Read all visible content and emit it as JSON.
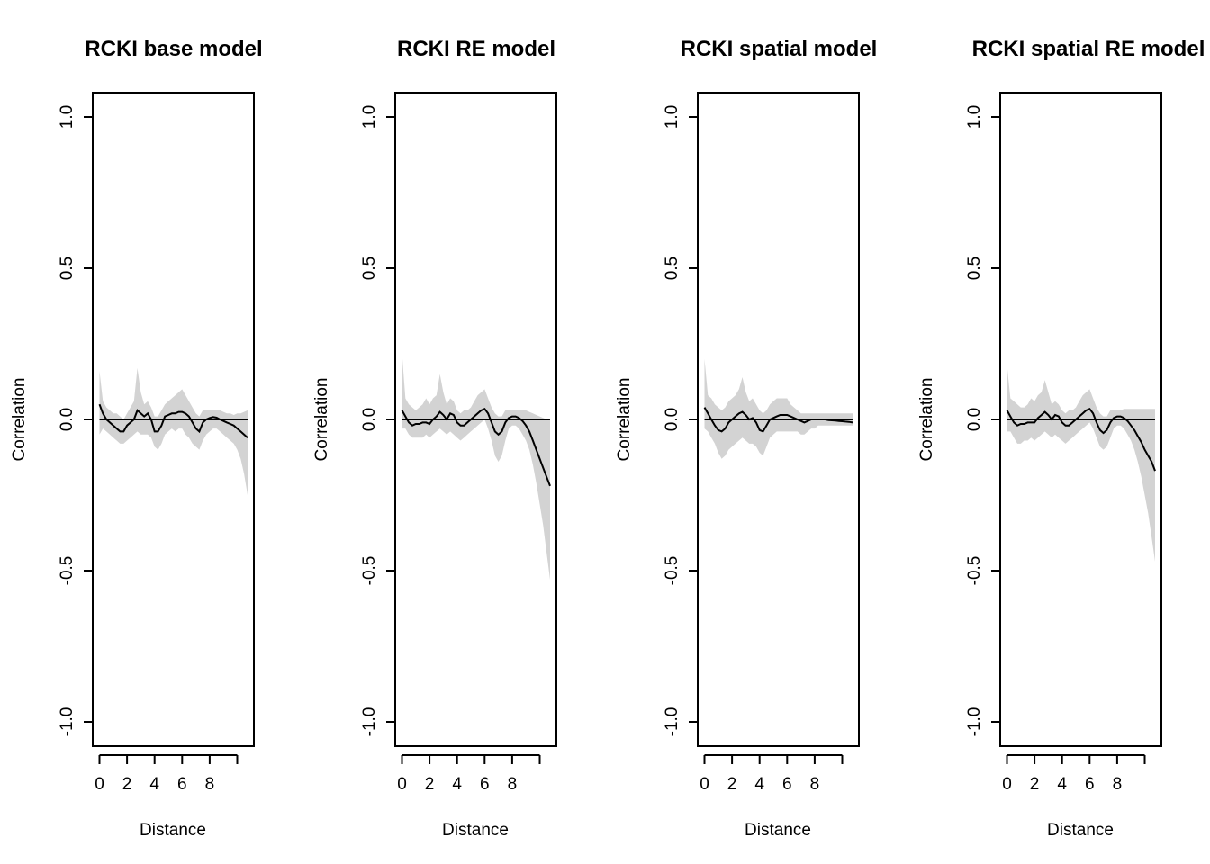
{
  "colors": {
    "band": "#d3d3d3",
    "line": "#000000",
    "frame": "#000000",
    "background": "#ffffff"
  },
  "chart_data": [
    {
      "type": "line",
      "title": "RCKI base model",
      "xlabel": "Distance",
      "ylabel": "Correlation",
      "xlim": [
        0,
        11
      ],
      "ylim": [
        -1,
        1
      ],
      "x_ticks": [
        0,
        2,
        4,
        6,
        8,
        10
      ],
      "x_tick_labels": [
        "0",
        "2",
        "4",
        "6",
        "8",
        ""
      ],
      "y_ticks": [
        -1,
        -0.5,
        0,
        0.5,
        1
      ],
      "y_tick_labels": [
        "-1.0",
        "-0.5",
        "0.0",
        "0.5",
        "1.0"
      ],
      "reference_line": 0,
      "series": [
        {
          "x": [
            0,
            0.25,
            0.5,
            0.75,
            1,
            1.25,
            1.5,
            1.75,
            2,
            2.25,
            2.5,
            2.75,
            3,
            3.25,
            3.5,
            3.75,
            4,
            4.25,
            4.5,
            4.75,
            5,
            5.25,
            5.5,
            5.75,
            6,
            6.25,
            6.5,
            6.75,
            7,
            7.25,
            7.5,
            7.75,
            8,
            8.25,
            8.5,
            8.75,
            9,
            9.25,
            9.5,
            9.75,
            10,
            10.25,
            10.5,
            10.75
          ],
          "y": [
            0.05,
            0.02,
            0.0,
            -0.01,
            -0.02,
            -0.03,
            -0.04,
            -0.04,
            -0.02,
            -0.01,
            0.0,
            0.03,
            0.02,
            0.01,
            0.02,
            0.0,
            -0.04,
            -0.04,
            -0.02,
            0.01,
            0.015,
            0.02,
            0.02,
            0.025,
            0.025,
            0.02,
            0.01,
            -0.01,
            -0.03,
            -0.04,
            -0.01,
            0.0,
            0.005,
            0.008,
            0.006,
            0.0,
            -0.005,
            -0.01,
            -0.015,
            -0.02,
            -0.03,
            -0.04,
            -0.05,
            -0.06
          ],
          "lower": [
            -0.05,
            -0.03,
            -0.04,
            -0.05,
            -0.06,
            -0.07,
            -0.08,
            -0.08,
            -0.07,
            -0.06,
            -0.05,
            -0.04,
            -0.05,
            -0.05,
            -0.05,
            -0.06,
            -0.09,
            -0.1,
            -0.08,
            -0.05,
            -0.04,
            -0.03,
            -0.04,
            -0.03,
            -0.03,
            -0.05,
            -0.06,
            -0.08,
            -0.09,
            -0.1,
            -0.07,
            -0.05,
            -0.04,
            -0.03,
            -0.03,
            -0.04,
            -0.05,
            -0.06,
            -0.07,
            -0.08,
            -0.1,
            -0.13,
            -0.18,
            -0.25
          ],
          "upper": [
            0.16,
            0.06,
            0.04,
            0.03,
            0.02,
            0.02,
            0.01,
            0.0,
            0.02,
            0.04,
            0.06,
            0.17,
            0.09,
            0.05,
            0.06,
            0.04,
            0.01,
            0.01,
            0.03,
            0.05,
            0.06,
            0.07,
            0.08,
            0.09,
            0.1,
            0.08,
            0.06,
            0.04,
            0.02,
            0.01,
            0.03,
            0.03,
            0.03,
            0.03,
            0.03,
            0.03,
            0.025,
            0.02,
            0.02,
            0.015,
            0.02,
            0.02,
            0.025,
            0.03
          ]
        }
      ]
    },
    {
      "type": "line",
      "title": "RCKI RE model",
      "xlabel": "Distance",
      "ylabel": "Correlation",
      "xlim": [
        0,
        11
      ],
      "ylim": [
        -1,
        1
      ],
      "x_ticks": [
        0,
        2,
        4,
        6,
        8,
        10
      ],
      "x_tick_labels": [
        "0",
        "2",
        "4",
        "6",
        "8",
        ""
      ],
      "y_ticks": [
        -1,
        -0.5,
        0,
        0.5,
        1
      ],
      "y_tick_labels": [
        "-1.0",
        "-0.5",
        "0.0",
        "0.5",
        "1.0"
      ],
      "reference_line": 0,
      "series": [
        {
          "x": [
            0,
            0.25,
            0.5,
            0.75,
            1,
            1.25,
            1.5,
            1.75,
            2,
            2.25,
            2.5,
            2.75,
            3,
            3.25,
            3.5,
            3.75,
            4,
            4.25,
            4.5,
            4.75,
            5,
            5.25,
            5.5,
            5.75,
            6,
            6.25,
            6.5,
            6.75,
            7,
            7.25,
            7.5,
            7.75,
            8,
            8.25,
            8.5,
            8.75,
            9,
            9.25,
            9.5,
            9.75,
            10,
            10.25,
            10.5,
            10.75
          ],
          "y": [
            0.03,
            0.01,
            -0.01,
            -0.02,
            -0.015,
            -0.015,
            -0.01,
            -0.01,
            -0.015,
            0.0,
            0.01,
            0.025,
            0.015,
            0.0,
            0.02,
            0.015,
            -0.01,
            -0.02,
            -0.02,
            -0.01,
            0.0,
            0.01,
            0.02,
            0.03,
            0.035,
            0.02,
            -0.01,
            -0.04,
            -0.05,
            -0.04,
            -0.01,
            0.005,
            0.01,
            0.01,
            0.005,
            -0.005,
            -0.02,
            -0.04,
            -0.07,
            -0.1,
            -0.13,
            -0.16,
            -0.19,
            -0.22
          ],
          "lower": [
            -0.03,
            -0.03,
            -0.05,
            -0.06,
            -0.06,
            -0.06,
            -0.06,
            -0.05,
            -0.06,
            -0.05,
            -0.04,
            -0.03,
            -0.04,
            -0.05,
            -0.04,
            -0.05,
            -0.06,
            -0.07,
            -0.06,
            -0.05,
            -0.04,
            -0.03,
            -0.02,
            -0.01,
            0.0,
            -0.03,
            -0.07,
            -0.12,
            -0.14,
            -0.12,
            -0.07,
            -0.03,
            -0.02,
            -0.02,
            -0.03,
            -0.05,
            -0.07,
            -0.1,
            -0.15,
            -0.21,
            -0.28,
            -0.35,
            -0.44,
            -0.53
          ],
          "upper": [
            0.22,
            0.07,
            0.05,
            0.04,
            0.03,
            0.04,
            0.05,
            0.07,
            0.05,
            0.07,
            0.08,
            0.15,
            0.09,
            0.05,
            0.07,
            0.06,
            0.03,
            0.02,
            0.03,
            0.03,
            0.04,
            0.06,
            0.08,
            0.09,
            0.1,
            0.07,
            0.04,
            0.02,
            0.01,
            0.01,
            0.03,
            0.03,
            0.03,
            0.03,
            0.03,
            0.03,
            0.03,
            0.025,
            0.02,
            0.015,
            0.01,
            0.005,
            0.0,
            0.0
          ]
        }
      ]
    },
    {
      "type": "line",
      "title": "RCKI spatial model",
      "xlabel": "Distance",
      "ylabel": "Correlation",
      "xlim": [
        0,
        11
      ],
      "ylim": [
        -1,
        1
      ],
      "x_ticks": [
        0,
        2,
        4,
        6,
        8,
        10
      ],
      "x_tick_labels": [
        "0",
        "2",
        "4",
        "6",
        "8",
        ""
      ],
      "y_ticks": [
        -1,
        -0.5,
        0,
        0.5,
        1
      ],
      "y_tick_labels": [
        "-1.0",
        "-0.5",
        "0.0",
        "0.5",
        "1.0"
      ],
      "reference_line": 0,
      "series": [
        {
          "x": [
            0,
            0.25,
            0.5,
            0.75,
            1,
            1.25,
            1.5,
            1.75,
            2,
            2.25,
            2.5,
            2.75,
            3,
            3.25,
            3.5,
            3.75,
            4,
            4.25,
            4.5,
            4.75,
            5,
            5.25,
            5.5,
            5.75,
            6,
            6.25,
            6.5,
            6.75,
            7,
            7.25,
            7.5,
            7.75,
            8,
            8.25,
            8.5,
            8.75,
            9,
            9.25,
            9.5,
            9.75,
            10,
            10.25,
            10.5,
            10.75
          ],
          "y": [
            0.04,
            0.02,
            0.0,
            -0.02,
            -0.035,
            -0.04,
            -0.03,
            -0.01,
            0.0,
            0.01,
            0.02,
            0.025,
            0.015,
            0.0,
            0.005,
            -0.01,
            -0.035,
            -0.04,
            -0.02,
            0.0,
            0.005,
            0.01,
            0.015,
            0.015,
            0.015,
            0.01,
            0.005,
            0.0,
            -0.005,
            -0.01,
            -0.005,
            0.0,
            0.0,
            0.0,
            0.0,
            0.0,
            -0.002,
            -0.003,
            -0.004,
            -0.005,
            -0.006,
            -0.007,
            -0.008,
            -0.01
          ],
          "lower": [
            -0.03,
            -0.04,
            -0.06,
            -0.08,
            -0.11,
            -0.13,
            -0.12,
            -0.1,
            -0.09,
            -0.08,
            -0.07,
            -0.06,
            -0.07,
            -0.08,
            -0.08,
            -0.09,
            -0.11,
            -0.12,
            -0.09,
            -0.06,
            -0.05,
            -0.04,
            -0.04,
            -0.04,
            -0.04,
            -0.04,
            -0.04,
            -0.04,
            -0.05,
            -0.05,
            -0.04,
            -0.03,
            -0.03,
            -0.02,
            -0.02,
            -0.02,
            -0.02,
            -0.02,
            -0.02,
            -0.02,
            -0.02,
            -0.02,
            -0.02,
            -0.02
          ],
          "upper": [
            0.2,
            0.08,
            0.07,
            0.05,
            0.04,
            0.03,
            0.04,
            0.06,
            0.07,
            0.08,
            0.1,
            0.14,
            0.09,
            0.06,
            0.07,
            0.05,
            0.03,
            0.02,
            0.03,
            0.05,
            0.06,
            0.07,
            0.07,
            0.07,
            0.07,
            0.05,
            0.04,
            0.03,
            0.02,
            0.02,
            0.02,
            0.02,
            0.02,
            0.02,
            0.02,
            0.02,
            0.02,
            0.02,
            0.02,
            0.02,
            0.02,
            0.02,
            0.02,
            0.02
          ]
        }
      ]
    },
    {
      "type": "line",
      "title": "RCKI spatial RE model",
      "xlabel": "Distance",
      "ylabel": "Correlation",
      "xlim": [
        0,
        11
      ],
      "ylim": [
        -1,
        1
      ],
      "x_ticks": [
        0,
        2,
        4,
        6,
        8,
        10
      ],
      "x_tick_labels": [
        "0",
        "2",
        "4",
        "6",
        "8",
        ""
      ],
      "y_ticks": [
        -1,
        -0.5,
        0,
        0.5,
        1
      ],
      "y_tick_labels": [
        "-1.0",
        "-0.5",
        "0.0",
        "0.5",
        "1.0"
      ],
      "reference_line": 0,
      "series": [
        {
          "x": [
            0,
            0.25,
            0.5,
            0.75,
            1,
            1.25,
            1.5,
            1.75,
            2,
            2.25,
            2.5,
            2.75,
            3,
            3.25,
            3.5,
            3.75,
            4,
            4.25,
            4.5,
            4.75,
            5,
            5.25,
            5.5,
            5.75,
            6,
            6.25,
            6.5,
            6.75,
            7,
            7.25,
            7.5,
            7.75,
            8,
            8.25,
            8.5,
            8.75,
            9,
            9.25,
            9.5,
            9.75,
            10,
            10.25,
            10.5,
            10.75
          ],
          "y": [
            0.03,
            0.01,
            -0.01,
            -0.02,
            -0.015,
            -0.015,
            -0.01,
            -0.01,
            -0.01,
            0.005,
            0.015,
            0.025,
            0.015,
            0.0,
            0.015,
            0.01,
            -0.01,
            -0.02,
            -0.02,
            -0.01,
            0.0,
            0.01,
            0.02,
            0.03,
            0.035,
            0.02,
            -0.01,
            -0.035,
            -0.045,
            -0.035,
            -0.01,
            0.005,
            0.01,
            0.01,
            0.005,
            -0.005,
            -0.02,
            -0.035,
            -0.055,
            -0.075,
            -0.1,
            -0.12,
            -0.14,
            -0.17
          ],
          "lower": [
            -0.04,
            -0.04,
            -0.06,
            -0.08,
            -0.08,
            -0.07,
            -0.07,
            -0.06,
            -0.07,
            -0.06,
            -0.05,
            -0.04,
            -0.05,
            -0.06,
            -0.05,
            -0.06,
            -0.07,
            -0.08,
            -0.07,
            -0.06,
            -0.05,
            -0.04,
            -0.03,
            -0.02,
            -0.01,
            -0.03,
            -0.06,
            -0.09,
            -0.1,
            -0.09,
            -0.06,
            -0.03,
            -0.02,
            -0.02,
            -0.03,
            -0.05,
            -0.07,
            -0.1,
            -0.14,
            -0.19,
            -0.25,
            -0.31,
            -0.39,
            -0.47
          ],
          "upper": [
            0.18,
            0.07,
            0.06,
            0.05,
            0.04,
            0.04,
            0.05,
            0.07,
            0.06,
            0.08,
            0.09,
            0.13,
            0.09,
            0.05,
            0.06,
            0.05,
            0.03,
            0.02,
            0.03,
            0.03,
            0.04,
            0.06,
            0.08,
            0.09,
            0.1,
            0.07,
            0.04,
            0.02,
            0.01,
            0.01,
            0.03,
            0.03,
            0.03,
            0.03,
            0.035,
            0.035,
            0.035,
            0.035,
            0.035,
            0.035,
            0.035,
            0.035,
            0.035,
            0.035
          ]
        }
      ]
    }
  ]
}
